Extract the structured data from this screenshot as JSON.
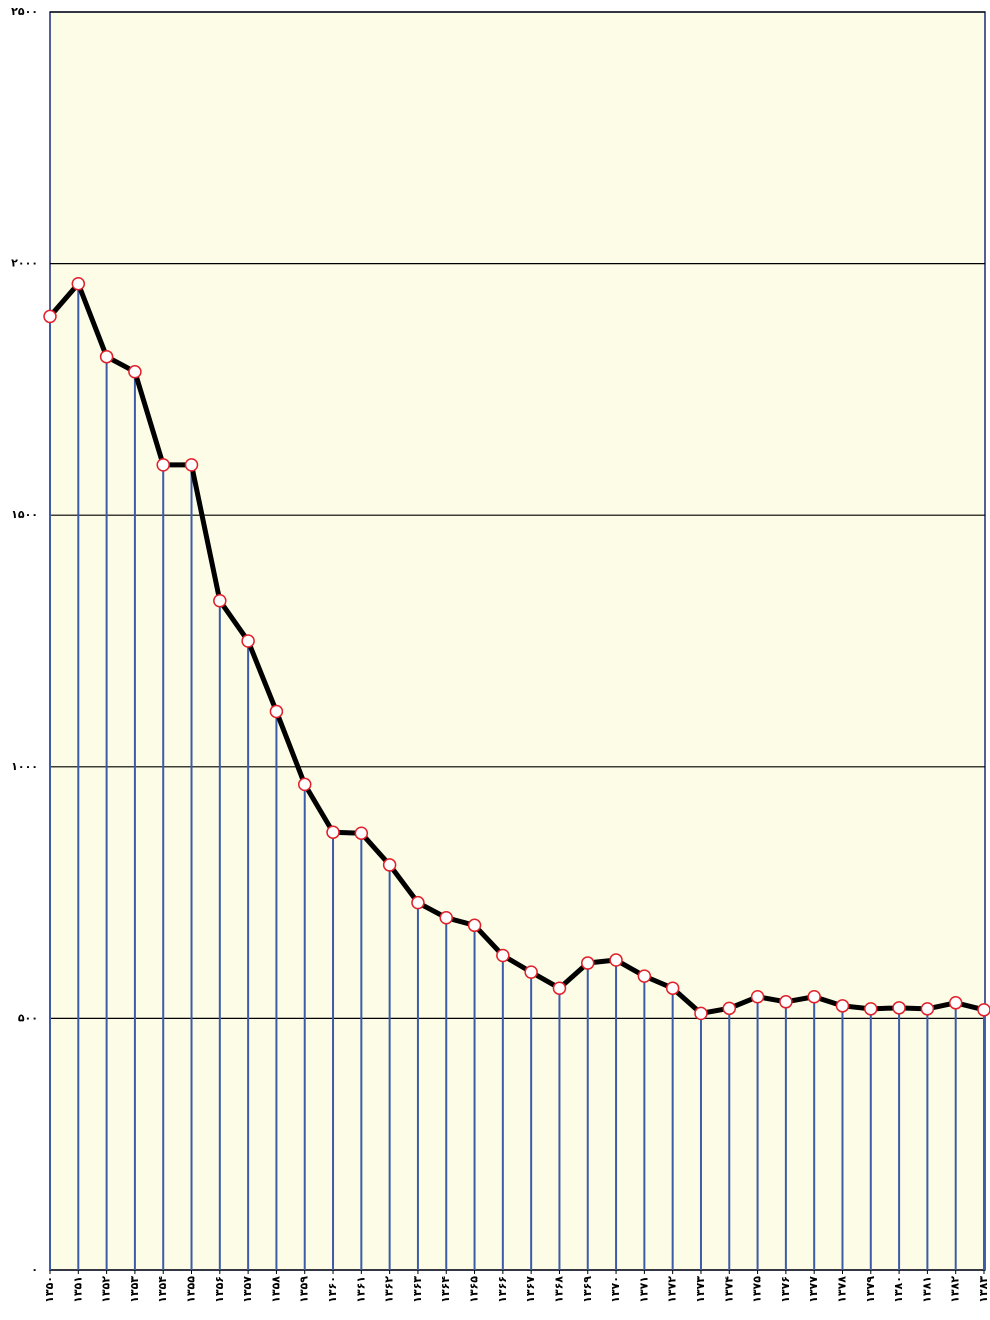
{
  "chart_data": {
    "type": "line",
    "categories": [
      "۱۳۵۰",
      "۱۳۵۱",
      "۱۳۵۲",
      "۱۳۵۳",
      "۱۳۵۴",
      "۱۳۵۵",
      "۱۳۵۶",
      "۱۳۵۷",
      "۱۳۵۸",
      "۱۳۵۹",
      "۱۳۶۰",
      "۱۳۶۱",
      "۱۳۶۲",
      "۱۳۶۳",
      "۱۳۶۴",
      "۱۳۶۵",
      "۱۳۶۶",
      "۱۳۶۷",
      "۱۳۶۸",
      "۱۳۶۹",
      "۱۳۷۰",
      "۱۳۷۱",
      "۱۳۷۲",
      "۱۳۷۳",
      "۱۳۷۴",
      "۱۳۷۵",
      "۱۳۷۶",
      "۱۳۷۷",
      "۱۳۷۸",
      "۱۳۷۹",
      "۱۳۸۰",
      "۱۳۸۱",
      "۱۳۸۲",
      "۱۳۸۳"
    ],
    "values": [
      1895,
      1960,
      1815,
      1785,
      1600,
      1600,
      1330,
      1250,
      1110,
      965,
      870,
      868,
      805,
      730,
      700,
      685,
      625,
      592,
      560,
      610,
      616,
      584,
      560,
      510,
      520,
      543,
      533,
      543,
      525,
      519,
      521,
      519,
      531,
      517
    ],
    "color": "#000000",
    "marker_color": "#e0202a",
    "drop_line_color": "#3d5ca8",
    "ylim": [
      0,
      2500
    ],
    "yticks": [
      {
        "value": 0,
        "label": "۰"
      },
      {
        "value": 500,
        "label": "۵۰۰"
      },
      {
        "value": 1000,
        "label": "۱۰۰۰"
      },
      {
        "value": 1500,
        "label": "۱۵۰۰"
      },
      {
        "value": 2000,
        "label": "۲۰۰۰"
      },
      {
        "value": 2500,
        "label": "۲۵۰۰"
      }
    ],
    "grid": true
  }
}
